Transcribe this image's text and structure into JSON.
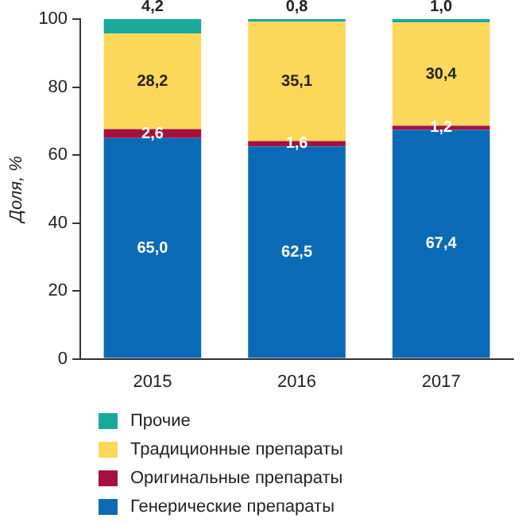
{
  "chart_data": {
    "type": "bar",
    "stacked": true,
    "ylabel": "Доля, %",
    "categories": [
      "2015",
      "2016",
      "2017"
    ],
    "ylim": [
      0,
      100
    ],
    "yticks": [
      0,
      20,
      40,
      60,
      80,
      100
    ],
    "grid": false,
    "legend": "bottom",
    "series": [
      {
        "name": "Генерические препараты",
        "color": "#0a6ab6",
        "values": [
          65.0,
          62.5,
          67.4
        ],
        "value_labels": [
          "65,0",
          "62,5",
          "67,4"
        ]
      },
      {
        "name": "Оригинальные препараты",
        "color": "#a3123f",
        "values": [
          2.6,
          1.6,
          1.2
        ],
        "value_labels": [
          "2,6",
          "1,6",
          "1,2"
        ]
      },
      {
        "name": "Традиционные препараты",
        "color": "#fcd85a",
        "values": [
          28.2,
          35.1,
          30.4
        ],
        "value_labels": [
          "28,2",
          "35,1",
          "30,4"
        ]
      },
      {
        "name": "Прочие",
        "color": "#18a99d",
        "values": [
          4.2,
          0.8,
          1.0
        ],
        "value_labels": [
          "4,2",
          "0,8",
          "1,0"
        ]
      }
    ]
  }
}
